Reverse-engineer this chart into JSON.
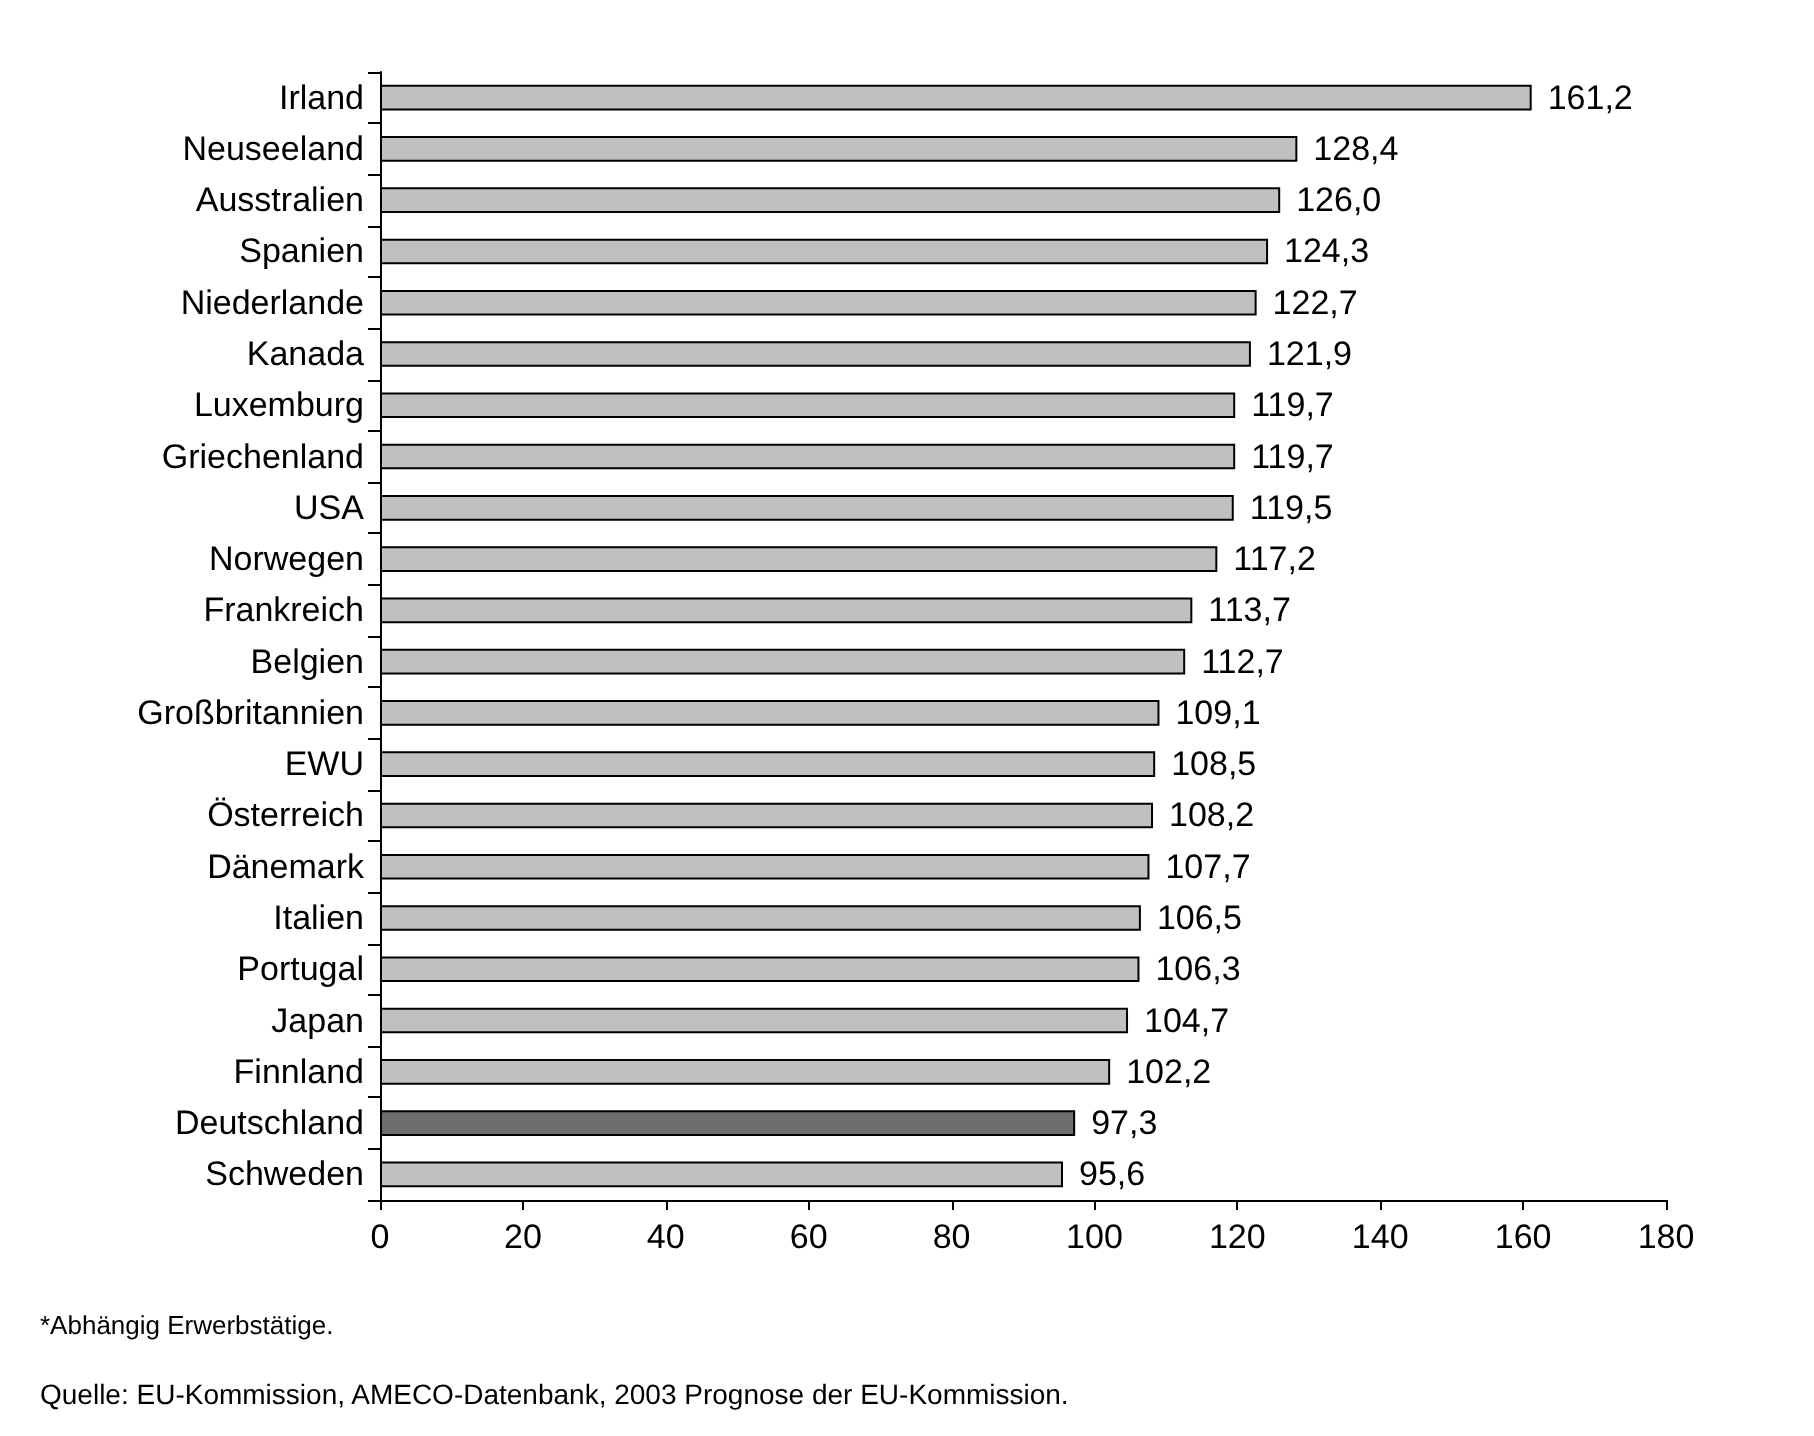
{
  "chart_data": {
    "type": "bar",
    "orientation": "horizontal",
    "categories": [
      "Irland",
      "Neuseeland",
      "Ausstralien",
      "Spanien",
      "Niederlande",
      "Kanada",
      "Luxemburg",
      "Griechenland",
      "USA",
      "Norwegen",
      "Frankreich",
      "Belgien",
      "Großbritannien",
      "EWU",
      "Österreich",
      "Dänemark",
      "Italien",
      "Portugal",
      "Japan",
      "Finnland",
      "Deutschland",
      "Schweden"
    ],
    "values": [
      161.2,
      128.4,
      126.0,
      124.3,
      122.7,
      121.9,
      119.7,
      119.7,
      119.5,
      117.2,
      113.7,
      112.7,
      109.1,
      108.5,
      108.2,
      107.7,
      106.5,
      106.3,
      104.7,
      102.2,
      97.3,
      95.6
    ],
    "value_labels": [
      "161,2",
      "128,4",
      "126,0",
      "124,3",
      "122,7",
      "121,9",
      "119,7",
      "119,7",
      "119,5",
      "117,2",
      "113,7",
      "112,7",
      "109,1",
      "108,5",
      "108,2",
      "107,7",
      "106,5",
      "106,3",
      "104,7",
      "102,2",
      "97,3",
      "95,6"
    ],
    "colors": [
      "#c0c0c0",
      "#c0c0c0",
      "#c0c0c0",
      "#c0c0c0",
      "#c0c0c0",
      "#c0c0c0",
      "#c0c0c0",
      "#c0c0c0",
      "#c0c0c0",
      "#c0c0c0",
      "#c0c0c0",
      "#c0c0c0",
      "#c0c0c0",
      "#c0c0c0",
      "#c0c0c0",
      "#c0c0c0",
      "#c0c0c0",
      "#c0c0c0",
      "#c0c0c0",
      "#c0c0c0",
      "#6e6e6e",
      "#c0c0c0"
    ],
    "xlim": [
      0,
      180
    ],
    "xticks": [
      0,
      20,
      40,
      60,
      80,
      100,
      120,
      140,
      160,
      180
    ],
    "grid": false,
    "annotations": [
      "*Abhängig Erwerbstätige.",
      "Quelle: EU-Kommission, AMECO-Datenbank, 2003 Prognose der EU-Kommission."
    ]
  }
}
